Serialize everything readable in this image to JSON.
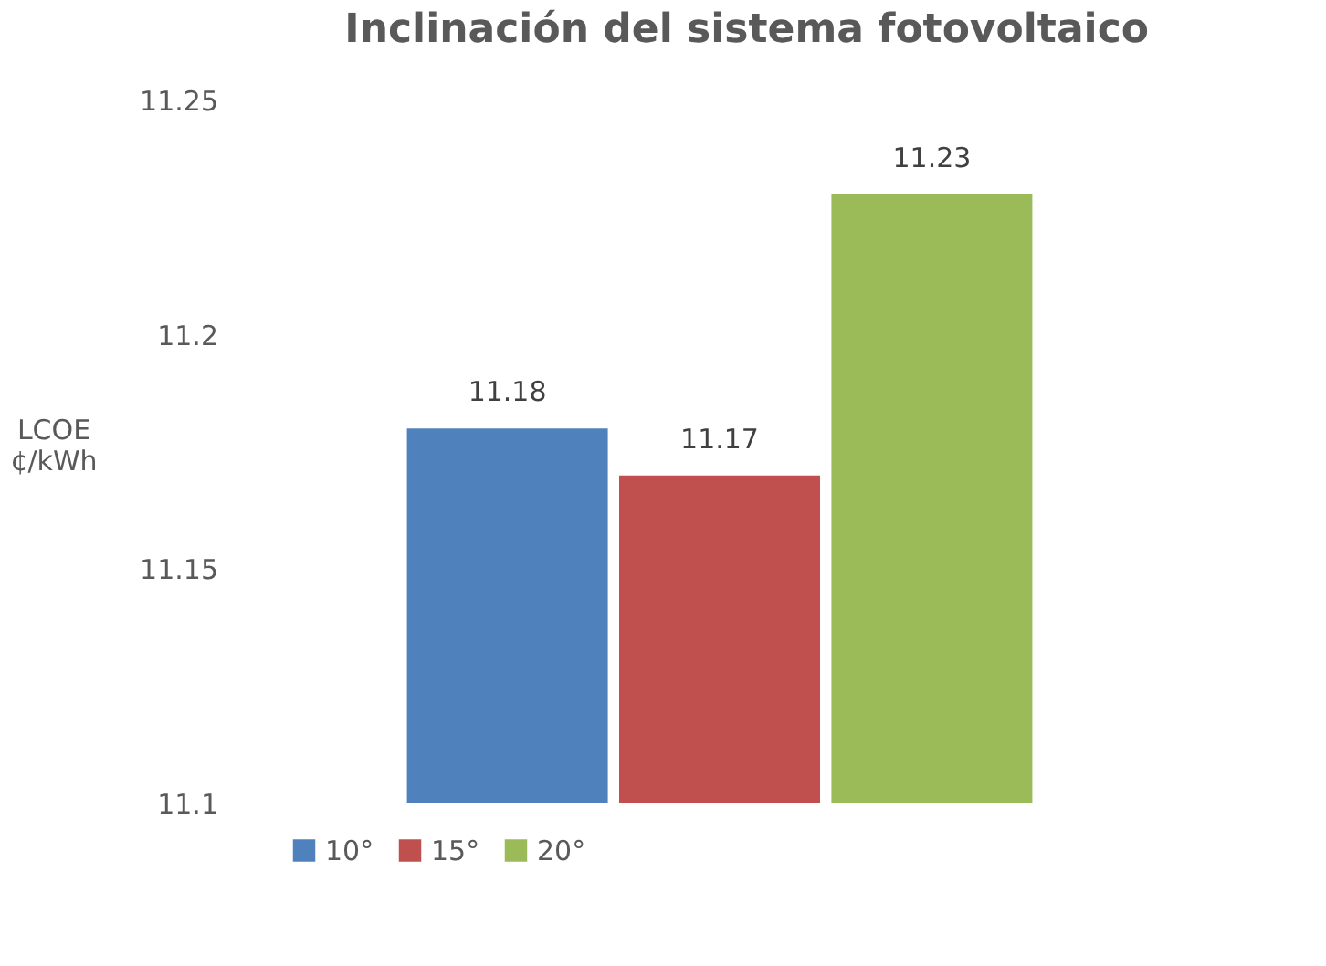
{
  "chart_data": {
    "type": "bar",
    "title": "Inclinación del sistema fotovoltaico",
    "ylabel": "LCOE ¢/kWh",
    "categories": [
      null
    ],
    "series": [
      {
        "name": "10°",
        "color": "#4f81bd",
        "values": [
          11.18
        ]
      },
      {
        "name": "15°",
        "color": "#c0504d",
        "values": [
          11.17
        ]
      },
      {
        "name": "20°",
        "color": "#9bbb59",
        "values": [
          11.23
        ]
      }
    ],
    "ylim": [
      11.1,
      11.25
    ],
    "yticks": [
      11.1,
      11.15,
      11.2,
      11.25
    ],
    "grid": false,
    "legend": "bottom",
    "data_labels": true
  }
}
